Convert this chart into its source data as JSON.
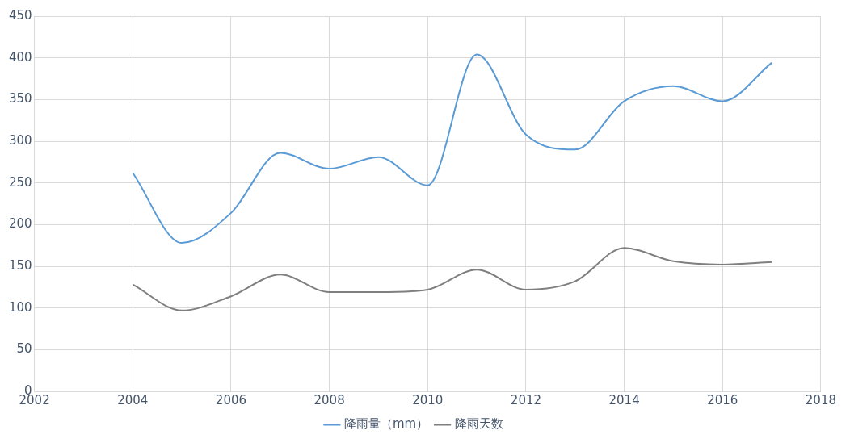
{
  "chart_data": {
    "type": "line",
    "x": [
      2004,
      2005,
      2006,
      2007,
      2008,
      2009,
      2010,
      2011,
      2012,
      2013,
      2014,
      2015,
      2016,
      2017
    ],
    "series": [
      {
        "name": "降雨量（mm）",
        "color": "#5b9bd5",
        "values": [
          262,
          178,
          214,
          286,
          267,
          281,
          247,
          404,
          308,
          290,
          348,
          366,
          348,
          394
        ]
      },
      {
        "name": "降雨天数",
        "color": "#7f7f7f",
        "values": [
          128,
          97,
          114,
          140,
          119,
          119,
          122,
          146,
          122,
          132,
          172,
          156,
          152,
          155
        ]
      }
    ],
    "xlim": [
      2002,
      2018
    ],
    "xticks": [
      2002,
      2004,
      2006,
      2008,
      2010,
      2012,
      2014,
      2016,
      2018
    ],
    "ylim": [
      0,
      450
    ],
    "yticks": [
      0,
      50,
      100,
      150,
      200,
      250,
      300,
      350,
      400,
      450
    ],
    "grid": true,
    "legend": "bottom",
    "marker": "none",
    "line_style": "solid"
  }
}
